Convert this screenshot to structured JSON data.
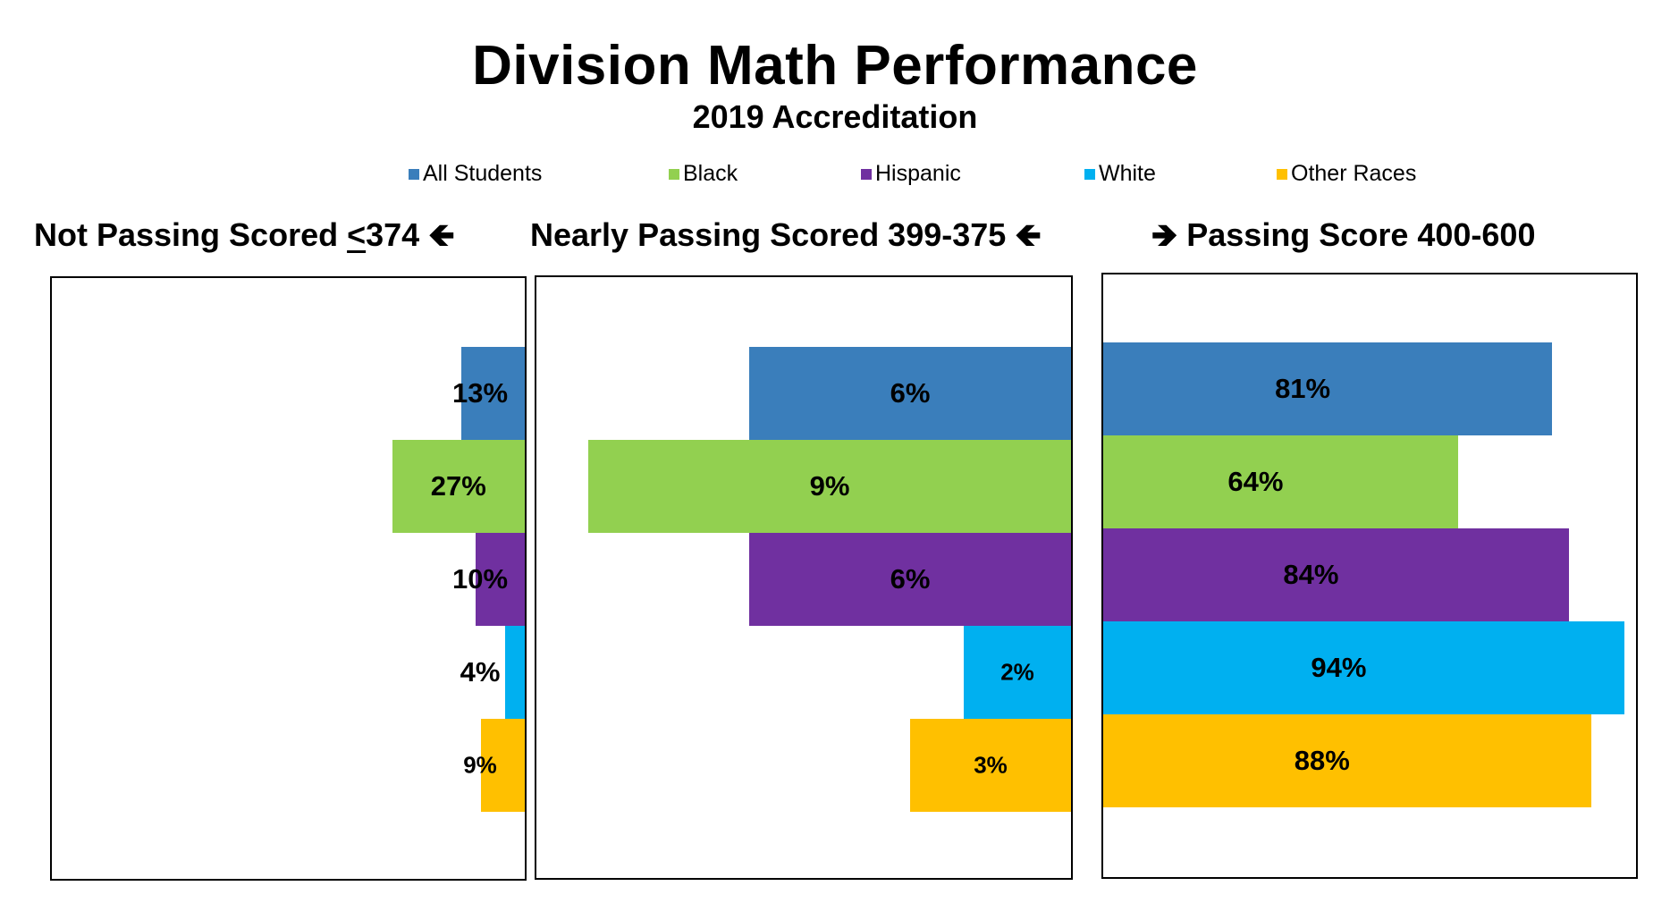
{
  "title": "Division Math Performance",
  "subtitle": "2019 Accreditation",
  "legend": [
    {
      "label": "All Students",
      "color": "#3A7EBB"
    },
    {
      "label": "Black",
      "color": "#92D050"
    },
    {
      "label": "Hispanic",
      "color": "#7030A0"
    },
    {
      "label": "White",
      "color": "#00B0F0"
    },
    {
      "label": "Other Races",
      "color": "#FFC000"
    }
  ],
  "panels": {
    "not_passing": {
      "title_main": "Not Passing Scored ",
      "title_underlined": "<",
      "title_value": "374 ",
      "arrow": "🡸"
    },
    "nearly_passing": {
      "title_text": "Nearly Passing Scored 399-375 ",
      "arrow": "🡸"
    },
    "passing": {
      "arrow": "🡺",
      "title_text": " Passing Score 400-600"
    }
  },
  "chart_data": {
    "type": "bar",
    "orientation": "horizontal",
    "title": "Division Math Performance",
    "subtitle": "2019 Accreditation",
    "categories": [
      "All Students",
      "Black",
      "Hispanic",
      "White",
      "Other Races"
    ],
    "colors": [
      "#3A7EBB",
      "#92D050",
      "#7030A0",
      "#00B0F0",
      "#FFC000"
    ],
    "panels": [
      {
        "title": "Not Passing Scored <374",
        "direction": "right-to-left",
        "values": [
          13,
          27,
          10,
          4,
          9
        ],
        "labels": [
          "13%",
          "27%",
          "10%",
          "4%",
          "9%"
        ]
      },
      {
        "title": "Nearly Passing Scored 399-375",
        "direction": "right-to-left",
        "values": [
          6,
          9,
          6,
          2,
          3
        ],
        "labels": [
          "6%",
          "9%",
          "6%",
          "2%",
          "3%"
        ]
      },
      {
        "title": "Passing Score 400-600",
        "direction": "left-to-right",
        "values": [
          81,
          64,
          84,
          94,
          88
        ],
        "labels": [
          "81%",
          "64%",
          "84%",
          "94%",
          "88%"
        ]
      }
    ]
  }
}
